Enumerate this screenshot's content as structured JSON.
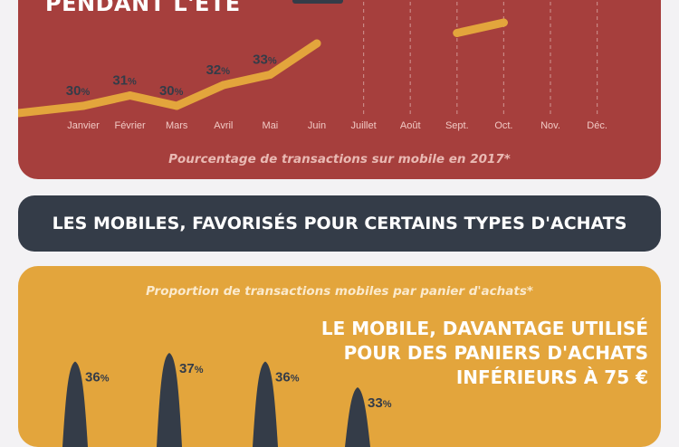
{
  "line_panel": {
    "heading": "PENDANT L'ÉTÉ",
    "caption": "Pourcentage de transactions sur mobile en 2017*"
  },
  "banner": {
    "title": "LES MOBILES, FAVORISÉS POUR CERTAINS TYPES D'ACHATS"
  },
  "basket_panel": {
    "caption": "Proportion de transactions mobiles par panier d'achats*",
    "heading_lines": [
      "LE MOBILE, DAVANTAGE UTILISÉ",
      "POUR DES PANIERS D'ACHATS",
      "INFÉRIEURS À 75 €"
    ]
  },
  "colors": {
    "red_panel": "#a63f3d",
    "line": "#e3a53c",
    "value_label": "#343c48",
    "month_label": "#f1c9c4",
    "gold_panel": "#e3a53c",
    "spike": "#343c48",
    "banner": "#343c48"
  },
  "chart_data": [
    {
      "type": "line",
      "title": "",
      "categories": [
        "Janvier",
        "Février",
        "Mars",
        "Avril",
        "Mai",
        "Juin",
        "Juillet",
        "Août",
        "Sept.",
        "Oct.",
        "Nov.",
        "Déc."
      ],
      "series": [
        {
          "values": [
            30,
            31,
            30,
            32,
            33,
            36,
            null,
            null,
            37,
            38,
            null,
            null
          ],
          "labels": [
            "30%",
            "31%",
            "30%",
            "32%",
            "33%",
            "",
            "",
            "",
            "",
            "",
            "",
            ""
          ]
        }
      ],
      "ylabel": "",
      "grid": true
    },
    {
      "type": "bar",
      "categories": [
        "",
        "",
        "",
        ""
      ],
      "values": [
        36,
        37,
        36,
        33
      ],
      "labels": [
        "36%",
        "37%",
        "36%",
        "33%"
      ]
    }
  ]
}
